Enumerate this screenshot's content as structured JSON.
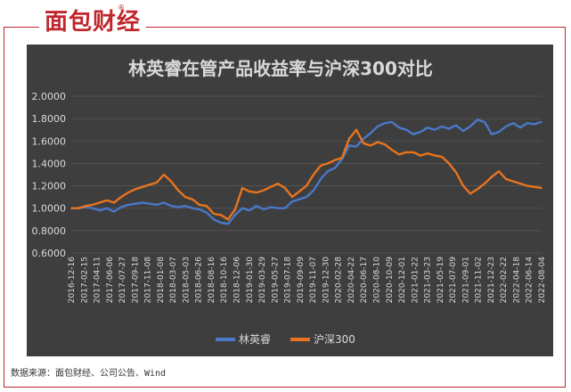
{
  "brand": {
    "logo_text": "面包财经",
    "registered_mark": "®"
  },
  "source_note": "数据来源：面包财经、公司公告、Wind",
  "colors": {
    "panel_bg": "#3e3e3e",
    "frame": "#c0262c",
    "series_fund": "#4a78c9",
    "series_index": "#e8741f",
    "text": "#d9d9d9",
    "grid": "#595959"
  },
  "chart_data": {
    "type": "line",
    "title": "林英睿在管产品收益率与沪深300对比",
    "xlabel": "",
    "ylabel": "",
    "ylim": [
      0.6,
      2.0
    ],
    "yticks": [
      "2.0000",
      "1.8000",
      "1.6000",
      "1.4000",
      "1.2000",
      "1.0000",
      "0.8000",
      "0.6000"
    ],
    "x_tick_labels": [
      "2016-12-16",
      "2017-02-15",
      "2017-04-11",
      "2017-06-06",
      "2017-07-27",
      "2017-09-18",
      "2017-11-08",
      "2018-01-08",
      "2018-03-07",
      "2018-05-03",
      "2018-06-26",
      "2018-08-16",
      "2018-10-16",
      "2018-12-06",
      "2019-01-30",
      "2019-03-29",
      "2019-05-27",
      "2019-07-18",
      "2019-09-09",
      "2019-11-07",
      "2019-12-30",
      "2020-02-28",
      "2020-04-22",
      "2020-06-17",
      "2020-08-10",
      "2020-10-09",
      "2020-12-01",
      "2021-01-22",
      "2021-03-23",
      "2021-05-19",
      "2021-07-09",
      "2021-09-01",
      "2021-11-02",
      "2021-12-23",
      "2022-02-22",
      "2022-04-18",
      "2022-06-14",
      "2022-08-04"
    ],
    "grid": true,
    "legend_position": "bottom",
    "series": [
      {
        "name": "林英睿",
        "color": "#4a78c9",
        "values": [
          1.0,
          1.0,
          1.01,
          1.0,
          0.98,
          1.0,
          0.97,
          1.01,
          1.03,
          1.04,
          1.05,
          1.04,
          1.03,
          1.05,
          1.02,
          1.01,
          1.02,
          1.0,
          0.99,
          0.96,
          0.9,
          0.87,
          0.86,
          0.94,
          1.0,
          0.98,
          1.02,
          0.99,
          1.01,
          1.0,
          1.0,
          1.06,
          1.08,
          1.1,
          1.16,
          1.26,
          1.33,
          1.36,
          1.44,
          1.56,
          1.55,
          1.62,
          1.67,
          1.73,
          1.76,
          1.77,
          1.72,
          1.7,
          1.66,
          1.68,
          1.72,
          1.7,
          1.73,
          1.71,
          1.74,
          1.69,
          1.73,
          1.79,
          1.77,
          1.66,
          1.68,
          1.73,
          1.76,
          1.72,
          1.76,
          1.75,
          1.77
        ]
      },
      {
        "name": "沪深300",
        "color": "#e8741f",
        "values": [
          1.0,
          1.0,
          1.02,
          1.03,
          1.05,
          1.07,
          1.05,
          1.1,
          1.14,
          1.17,
          1.19,
          1.21,
          1.23,
          1.3,
          1.24,
          1.16,
          1.1,
          1.08,
          1.03,
          1.02,
          0.95,
          0.94,
          0.9,
          0.99,
          1.18,
          1.15,
          1.14,
          1.16,
          1.19,
          1.22,
          1.18,
          1.1,
          1.15,
          1.2,
          1.3,
          1.38,
          1.4,
          1.43,
          1.45,
          1.62,
          1.7,
          1.58,
          1.56,
          1.59,
          1.57,
          1.52,
          1.48,
          1.5,
          1.5,
          1.47,
          1.49,
          1.47,
          1.46,
          1.4,
          1.32,
          1.2,
          1.13,
          1.17,
          1.22,
          1.28,
          1.33,
          1.26,
          1.24,
          1.22,
          1.2,
          1.19,
          1.18
        ]
      }
    ]
  }
}
